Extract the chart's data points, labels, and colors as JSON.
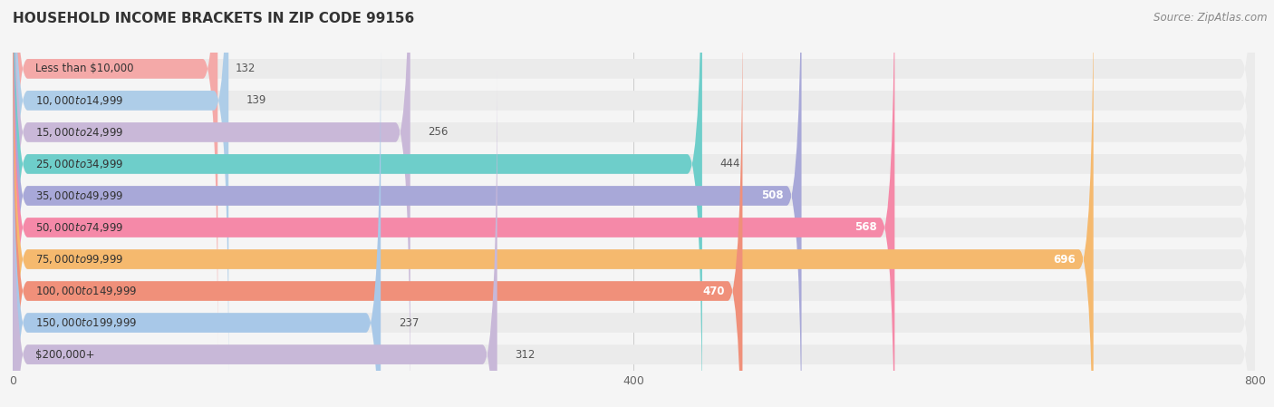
{
  "title": "HOUSEHOLD INCOME BRACKETS IN ZIP CODE 99156",
  "source": "Source: ZipAtlas.com",
  "categories": [
    "Less than $10,000",
    "$10,000 to $14,999",
    "$15,000 to $24,999",
    "$25,000 to $34,999",
    "$35,000 to $49,999",
    "$50,000 to $74,999",
    "$75,000 to $99,999",
    "$100,000 to $149,999",
    "$150,000 to $199,999",
    "$200,000+"
  ],
  "values": [
    132,
    139,
    256,
    444,
    508,
    568,
    696,
    470,
    237,
    312
  ],
  "bar_colors": [
    "#f4a9a8",
    "#aecde8",
    "#c9b8d8",
    "#6ececa",
    "#a8a8d8",
    "#f589a8",
    "#f5b96e",
    "#f0907a",
    "#a8c8e8",
    "#c8b8d8"
  ],
  "xlim_max": 800,
  "xticks": [
    0,
    400,
    800
  ],
  "page_bg": "#f5f5f5",
  "row_bg": "#ebebeb",
  "title_fontsize": 11,
  "source_fontsize": 8.5,
  "label_fontsize": 8.5,
  "value_fontsize": 8.5,
  "bar_height": 0.62,
  "white_label_threshold": 450
}
